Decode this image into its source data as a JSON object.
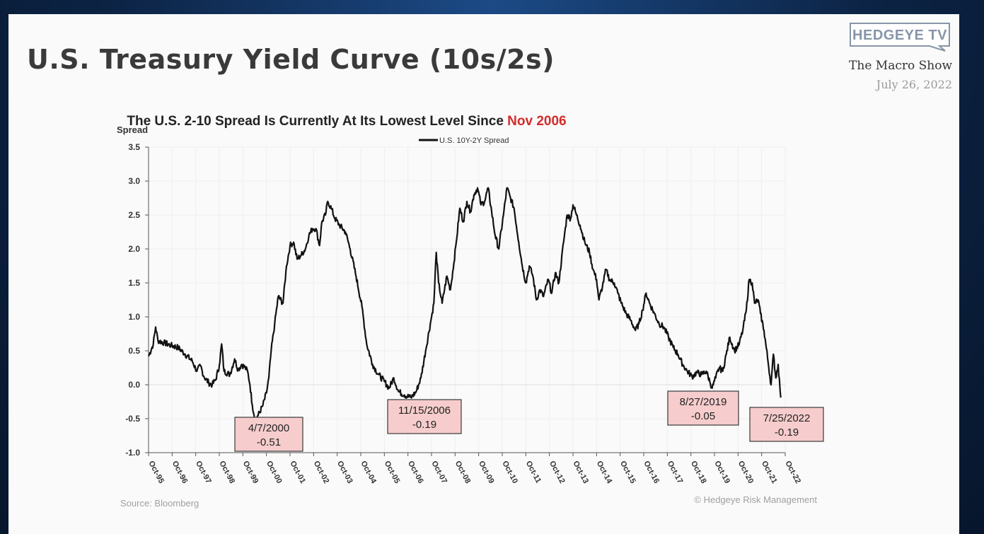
{
  "header": {
    "title": "U.S. Treasury Yield Curve (10s/2s)",
    "logo_text": "HEDGEYE TV",
    "show": "The Macro Show",
    "date": "July 26, 2022"
  },
  "colors": {
    "line": "#111111",
    "accent": "#d42b2b",
    "callout_fill": "#f6cccc",
    "callout_border": "#3a3a3a",
    "grid": "#eeeeee",
    "logo": "#8795a8"
  },
  "chart_data": {
    "type": "line",
    "title": "The U.S. 2-10 Spread Is Currently At Its Lowest Level Since ",
    "title_highlight": "Nov 2006",
    "ylabel": "Spread",
    "legend": "U.S. 10Y-2Y Spread",
    "legend_position": "top-center",
    "source": "Source: Bloomberg",
    "copyright": "© Hedgeye Risk Management",
    "grid": true,
    "ylim": [
      -1.0,
      3.5
    ],
    "yticks": [
      -1.0,
      -0.5,
      0.0,
      0.5,
      1.0,
      1.5,
      2.0,
      2.5,
      3.0,
      3.5
    ],
    "ytick_labels": [
      "-1.0",
      "-0.5",
      "0.0",
      "0.5",
      "1.0",
      "1.5",
      "2.0",
      "2.5",
      "3.0",
      "3.5"
    ],
    "xlim": [
      1995.75,
      2022.75
    ],
    "xticks": [
      "Oct-95",
      "Oct-96",
      "Oct-97",
      "Oct-98",
      "Oct-99",
      "Oct-00",
      "Oct-01",
      "Oct-02",
      "Oct-03",
      "Oct-04",
      "Oct-05",
      "Oct-06",
      "Oct-07",
      "Oct-08",
      "Oct-09",
      "Oct-10",
      "Oct-11",
      "Oct-12",
      "Oct-13",
      "Oct-14",
      "Oct-15",
      "Oct-16",
      "Oct-17",
      "Oct-18",
      "Oct-19",
      "Oct-20",
      "Oct-21",
      "Oct-22"
    ],
    "series": [
      {
        "name": "U.S. 10Y-2Y Spread",
        "points": [
          [
            1995.75,
            0.42
          ],
          [
            1995.95,
            0.6
          ],
          [
            1996.05,
            0.85
          ],
          [
            1996.15,
            0.65
          ],
          [
            1996.4,
            0.62
          ],
          [
            1996.7,
            0.58
          ],
          [
            1997.0,
            0.55
          ],
          [
            1997.3,
            0.45
          ],
          [
            1997.6,
            0.35
          ],
          [
            1997.8,
            0.2
          ],
          [
            1997.95,
            0.28
          ],
          [
            1998.1,
            0.12
          ],
          [
            1998.3,
            0.03
          ],
          [
            1998.45,
            0.0
          ],
          [
            1998.6,
            0.08
          ],
          [
            1998.75,
            0.28
          ],
          [
            1998.85,
            0.6
          ],
          [
            1998.95,
            0.2
          ],
          [
            1999.2,
            0.15
          ],
          [
            1999.4,
            0.38
          ],
          [
            1999.55,
            0.22
          ],
          [
            1999.7,
            0.3
          ],
          [
            1999.85,
            0.25
          ],
          [
            1999.95,
            0.2
          ],
          [
            2000.05,
            0.0
          ],
          [
            2000.15,
            -0.3
          ],
          [
            2000.27,
            -0.51
          ],
          [
            2000.4,
            -0.45
          ],
          [
            2000.6,
            -0.3
          ],
          [
            2000.75,
            -0.12
          ],
          [
            2000.85,
            0.1
          ],
          [
            2000.95,
            0.5
          ],
          [
            2001.1,
            0.9
          ],
          [
            2001.25,
            1.3
          ],
          [
            2001.45,
            1.2
          ],
          [
            2001.6,
            1.75
          ],
          [
            2001.75,
            2.05
          ],
          [
            2001.9,
            2.1
          ],
          [
            2002.05,
            1.85
          ],
          [
            2002.2,
            1.9
          ],
          [
            2002.4,
            2.0
          ],
          [
            2002.55,
            2.2
          ],
          [
            2002.7,
            2.3
          ],
          [
            2002.85,
            2.3
          ],
          [
            2003.0,
            2.05
          ],
          [
            2003.1,
            2.4
          ],
          [
            2003.25,
            2.5
          ],
          [
            2003.35,
            2.7
          ],
          [
            2003.5,
            2.6
          ],
          [
            2003.65,
            2.45
          ],
          [
            2003.85,
            2.35
          ],
          [
            2004.1,
            2.25
          ],
          [
            2004.3,
            2.0
          ],
          [
            2004.55,
            1.6
          ],
          [
            2004.8,
            1.15
          ],
          [
            2005.0,
            0.6
          ],
          [
            2005.25,
            0.3
          ],
          [
            2005.5,
            0.15
          ],
          [
            2005.75,
            0.05
          ],
          [
            2005.95,
            -0.05
          ],
          [
            2006.15,
            0.1
          ],
          [
            2006.35,
            -0.1
          ],
          [
            2006.6,
            -0.15
          ],
          [
            2006.88,
            -0.19
          ],
          [
            2007.1,
            -0.1
          ],
          [
            2007.3,
            0.1
          ],
          [
            2007.5,
            0.5
          ],
          [
            2007.7,
            0.9
          ],
          [
            2007.85,
            1.2
          ],
          [
            2007.95,
            1.95
          ],
          [
            2008.05,
            1.5
          ],
          [
            2008.2,
            1.2
          ],
          [
            2008.4,
            1.6
          ],
          [
            2008.55,
            1.4
          ],
          [
            2008.7,
            1.8
          ],
          [
            2008.8,
            2.1
          ],
          [
            2008.95,
            2.6
          ],
          [
            2009.1,
            2.4
          ],
          [
            2009.25,
            2.7
          ],
          [
            2009.4,
            2.55
          ],
          [
            2009.55,
            2.8
          ],
          [
            2009.7,
            2.9
          ],
          [
            2009.85,
            2.65
          ],
          [
            2010.0,
            2.7
          ],
          [
            2010.15,
            2.9
          ],
          [
            2010.3,
            2.55
          ],
          [
            2010.45,
            2.2
          ],
          [
            2010.6,
            2.0
          ],
          [
            2010.8,
            2.5
          ],
          [
            2010.95,
            2.9
          ],
          [
            2011.1,
            2.75
          ],
          [
            2011.25,
            2.6
          ],
          [
            2011.45,
            2.1
          ],
          [
            2011.6,
            1.75
          ],
          [
            2011.75,
            1.5
          ],
          [
            2011.9,
            1.75
          ],
          [
            2012.05,
            1.6
          ],
          [
            2012.2,
            1.25
          ],
          [
            2012.35,
            1.4
          ],
          [
            2012.5,
            1.3
          ],
          [
            2012.7,
            1.55
          ],
          [
            2012.85,
            1.35
          ],
          [
            2013.0,
            1.65
          ],
          [
            2013.15,
            1.5
          ],
          [
            2013.35,
            2.1
          ],
          [
            2013.5,
            2.5
          ],
          [
            2013.65,
            2.45
          ],
          [
            2013.75,
            2.65
          ],
          [
            2013.9,
            2.5
          ],
          [
            2014.05,
            2.35
          ],
          [
            2014.25,
            2.1
          ],
          [
            2014.45,
            1.95
          ],
          [
            2014.6,
            1.7
          ],
          [
            2014.75,
            1.55
          ],
          [
            2014.85,
            1.25
          ],
          [
            2015.0,
            1.45
          ],
          [
            2015.15,
            1.7
          ],
          [
            2015.3,
            1.55
          ],
          [
            2015.5,
            1.5
          ],
          [
            2015.65,
            1.35
          ],
          [
            2015.8,
            1.2
          ],
          [
            2016.0,
            1.05
          ],
          [
            2016.2,
            0.95
          ],
          [
            2016.4,
            0.8
          ],
          [
            2016.55,
            0.9
          ],
          [
            2016.7,
            1.1
          ],
          [
            2016.85,
            1.35
          ],
          [
            2017.0,
            1.2
          ],
          [
            2017.2,
            1.05
          ],
          [
            2017.4,
            0.9
          ],
          [
            2017.6,
            0.85
          ],
          [
            2017.8,
            0.7
          ],
          [
            2018.0,
            0.55
          ],
          [
            2018.2,
            0.45
          ],
          [
            2018.4,
            0.3
          ],
          [
            2018.6,
            0.2
          ],
          [
            2018.8,
            0.12
          ],
          [
            2019.0,
            0.18
          ],
          [
            2019.2,
            0.15
          ],
          [
            2019.4,
            0.2
          ],
          [
            2019.55,
            0.05
          ],
          [
            2019.65,
            -0.05
          ],
          [
            2019.8,
            0.1
          ],
          [
            2019.95,
            0.25
          ],
          [
            2020.1,
            0.2
          ],
          [
            2020.25,
            0.45
          ],
          [
            2020.4,
            0.7
          ],
          [
            2020.6,
            0.5
          ],
          [
            2020.8,
            0.6
          ],
          [
            2020.95,
            0.8
          ],
          [
            2021.1,
            1.1
          ],
          [
            2021.22,
            1.55
          ],
          [
            2021.35,
            1.5
          ],
          [
            2021.45,
            1.2
          ],
          [
            2021.6,
            1.25
          ],
          [
            2021.7,
            1.05
          ],
          [
            2021.85,
            0.8
          ],
          [
            2022.0,
            0.4
          ],
          [
            2022.15,
            0.0
          ],
          [
            2022.25,
            0.45
          ],
          [
            2022.35,
            0.1
          ],
          [
            2022.45,
            0.3
          ],
          [
            2022.56,
            -0.19
          ]
        ]
      }
    ],
    "annotations": [
      {
        "date": "4/7/2000",
        "value": "-0.51"
      },
      {
        "date": "11/15/2006",
        "value": "-0.19"
      },
      {
        "date": "8/27/2019",
        "value": "-0.05"
      },
      {
        "date": "7/25/2022",
        "value": "-0.19"
      }
    ]
  }
}
